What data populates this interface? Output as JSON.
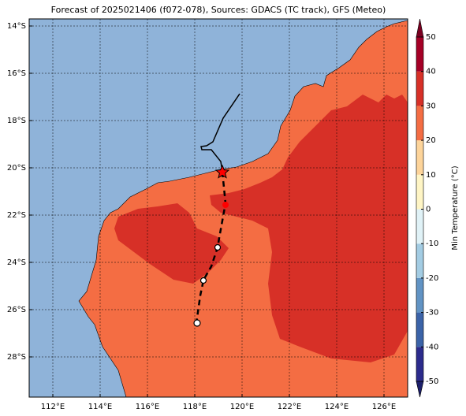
{
  "chart_data": {
    "type": "map",
    "title": "Forecast of 2025021406 (f072-078), Sources: GDACS (TC track), GFS (Meteo)",
    "xlim": [
      111,
      127
    ],
    "ylim": [
      -29.7,
      -13.7
    ],
    "grid": true,
    "xticks": [
      {
        "value": 112,
        "label": "112°E"
      },
      {
        "value": 114,
        "label": "114°E"
      },
      {
        "value": 116,
        "label": "116°E"
      },
      {
        "value": 118,
        "label": "118°E"
      },
      {
        "value": 120,
        "label": "120°E"
      },
      {
        "value": 122,
        "label": "122°E"
      },
      {
        "value": 124,
        "label": "124°E"
      },
      {
        "value": 126,
        "label": "126°E"
      }
    ],
    "yticks": [
      {
        "value": -14,
        "label": "14°S"
      },
      {
        "value": -16,
        "label": "16°S"
      },
      {
        "value": -18,
        "label": "18°S"
      },
      {
        "value": -20,
        "label": "20°S"
      },
      {
        "value": -22,
        "label": "22°S"
      },
      {
        "value": -24,
        "label": "24°S"
      },
      {
        "value": -26,
        "label": "26°S"
      },
      {
        "value": -28,
        "label": "28°S"
      }
    ],
    "colorbar": {
      "label": "Min Temperature (°C)",
      "clim": [
        -50,
        50
      ],
      "ticks": [
        -50,
        -40,
        -30,
        -20,
        -10,
        0,
        10,
        20,
        30,
        40,
        50
      ],
      "colors": [
        "#2c2b8c",
        "#3b63a8",
        "#6193c4",
        "#a3cce3",
        "#e0f2f7",
        "#fff5c5",
        "#fdd49a",
        "#f46d43",
        "#d73027",
        "#a50026"
      ],
      "extend_colors": [
        "#1c1f6b",
        "#7a0020"
      ]
    }
  }
}
